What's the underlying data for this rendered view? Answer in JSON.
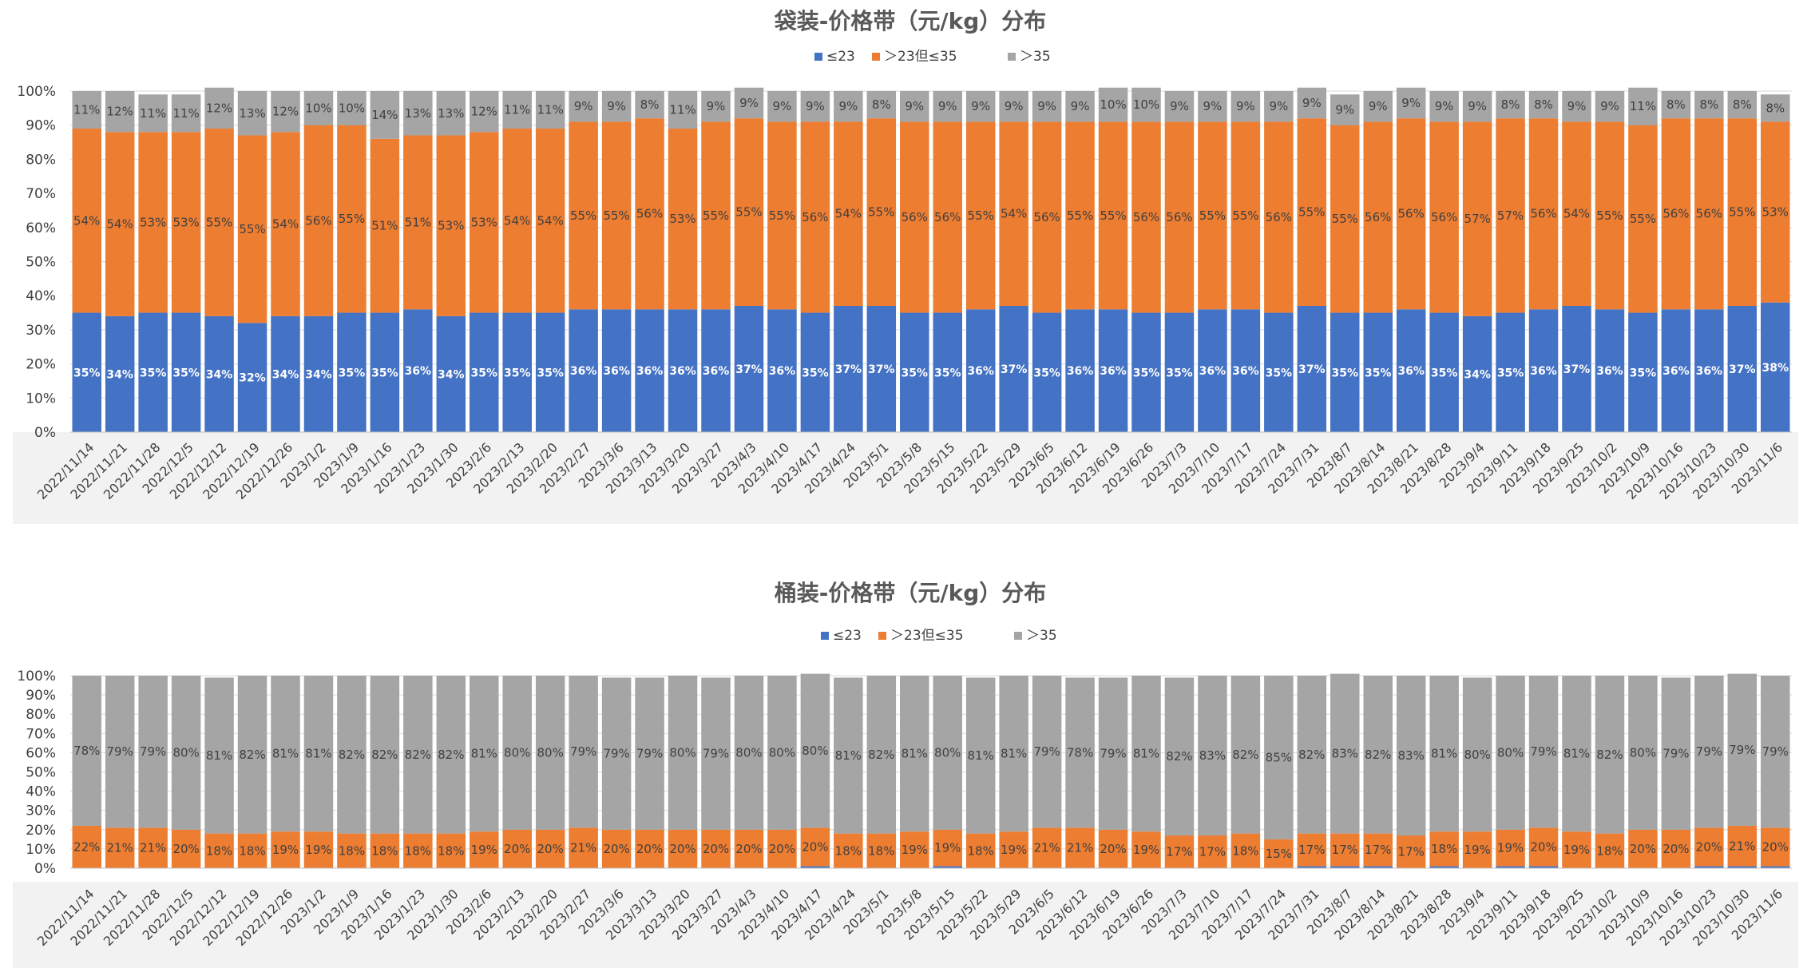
{
  "colors": {
    "low": "#4472C4",
    "mid": "#ED7D31",
    "high": "#A5A5A5"
  },
  "chart_data": [
    {
      "type": "bar",
      "stacked": "percent",
      "title": "袋装-价格带（元/kg）分布",
      "legend_position": "top",
      "ylim": [
        0,
        100
      ],
      "yticks": [
        "0%",
        "10%",
        "20%",
        "30%",
        "40%",
        "50%",
        "60%",
        "70%",
        "80%",
        "90%",
        "100%"
      ],
      "categories": [
        "2022/11/14",
        "2022/11/21",
        "2022/11/28",
        "2022/12/5",
        "2022/12/12",
        "2022/12/19",
        "2022/12/26",
        "2023/1/2",
        "2023/1/9",
        "2023/1/16",
        "2023/1/23",
        "2023/1/30",
        "2023/2/6",
        "2023/2/13",
        "2023/2/20",
        "2023/2/27",
        "2023/3/6",
        "2023/3/13",
        "2023/3/20",
        "2023/3/27",
        "2023/4/3",
        "2023/4/10",
        "2023/4/17",
        "2023/4/24",
        "2023/5/1",
        "2023/5/8",
        "2023/5/15",
        "2023/5/22",
        "2023/5/29",
        "2023/6/5",
        "2023/6/12",
        "2023/6/19",
        "2023/6/26",
        "2023/7/3",
        "2023/7/10",
        "2023/7/17",
        "2023/7/24",
        "2023/7/31",
        "2023/8/7",
        "2023/8/14",
        "2023/8/21",
        "2023/8/28",
        "2023/9/4",
        "2023/9/11",
        "2023/9/18",
        "2023/9/25",
        "2023/10/2",
        "2023/10/9",
        "2023/10/16",
        "2023/10/23",
        "2023/10/30",
        "2023/11/6"
      ],
      "series": [
        {
          "name": "≤23",
          "values": [
            35,
            34,
            35,
            35,
            34,
            32,
            34,
            34,
            35,
            35,
            36,
            34,
            35,
            35,
            35,
            36,
            36,
            36,
            36,
            36,
            37,
            36,
            35,
            37,
            37,
            35,
            35,
            36,
            37,
            35,
            36,
            36,
            35,
            35,
            36,
            36,
            35,
            37,
            35,
            35,
            36,
            35,
            34,
            35,
            36,
            37,
            36,
            35,
            36,
            36,
            37,
            38
          ],
          "show_labels": true
        },
        {
          "name": "＞23但≤35",
          "values": [
            54,
            54,
            53,
            53,
            55,
            55,
            54,
            56,
            55,
            51,
            51,
            53,
            53,
            54,
            54,
            55,
            55,
            56,
            53,
            55,
            55,
            55,
            56,
            54,
            55,
            56,
            56,
            55,
            54,
            56,
            55,
            55,
            56,
            56,
            55,
            55,
            56,
            55,
            55,
            56,
            56,
            56,
            57,
            57,
            56,
            54,
            55,
            55,
            56,
            56,
            55,
            53
          ],
          "show_labels": true
        },
        {
          "name": "＞35",
          "values": [
            11,
            12,
            11,
            11,
            12,
            13,
            12,
            10,
            10,
            14,
            13,
            13,
            12,
            11,
            11,
            9,
            9,
            8,
            11,
            9,
            9,
            9,
            9,
            9,
            8,
            9,
            9,
            9,
            9,
            9,
            9,
            10,
            10,
            9,
            9,
            9,
            9,
            9,
            9,
            9,
            9,
            9,
            9,
            8,
            8,
            9,
            9,
            11,
            8,
            8,
            8,
            8
          ],
          "show_labels": true
        }
      ]
    },
    {
      "type": "bar",
      "stacked": "percent",
      "title": "桶装-价格带（元/kg）分布",
      "legend_position": "top",
      "ylim": [
        0,
        100
      ],
      "yticks": [
        "0%",
        "10%",
        "20%",
        "30%",
        "40%",
        "50%",
        "60%",
        "70%",
        "80%",
        "90%",
        "100%"
      ],
      "categories": [
        "2022/11/14",
        "2022/11/21",
        "2022/11/28",
        "2022/12/5",
        "2022/12/12",
        "2022/12/19",
        "2022/12/26",
        "2023/1/2",
        "2023/1/9",
        "2023/1/16",
        "2023/1/23",
        "2023/1/30",
        "2023/2/6",
        "2023/2/13",
        "2023/2/20",
        "2023/2/27",
        "2023/3/6",
        "2023/3/13",
        "2023/3/20",
        "2023/3/27",
        "2023/4/3",
        "2023/4/10",
        "2023/4/17",
        "2023/4/24",
        "2023/5/1",
        "2023/5/8",
        "2023/5/15",
        "2023/5/22",
        "2023/5/29",
        "2023/6/5",
        "2023/6/12",
        "2023/6/19",
        "2023/6/26",
        "2023/7/3",
        "2023/7/10",
        "2023/7/17",
        "2023/7/24",
        "2023/7/31",
        "2023/8/7",
        "2023/8/14",
        "2023/8/21",
        "2023/8/28",
        "2023/9/4",
        "2023/9/11",
        "2023/9/18",
        "2023/9/25",
        "2023/10/2",
        "2023/10/9",
        "2023/10/16",
        "2023/10/23",
        "2023/10/30",
        "2023/11/6"
      ],
      "series": [
        {
          "name": "≤23",
          "values": [
            0,
            0,
            0,
            0,
            0,
            0,
            0,
            0,
            0,
            0,
            0,
            0,
            0,
            0,
            0,
            0,
            0,
            0,
            0,
            0,
            0,
            0,
            1,
            0,
            0,
            0,
            1,
            0,
            0,
            0,
            0,
            0,
            0,
            0,
            0,
            0,
            0,
            1,
            1,
            1,
            0,
            1,
            0,
            1,
            1,
            0,
            0,
            0,
            0,
            1,
            1,
            1
          ],
          "show_labels": false
        },
        {
          "name": "＞23但≤35",
          "values": [
            22,
            21,
            21,
            20,
            18,
            18,
            19,
            19,
            18,
            18,
            18,
            18,
            19,
            20,
            20,
            21,
            20,
            20,
            20,
            20,
            20,
            20,
            20,
            18,
            18,
            19,
            19,
            18,
            19,
            21,
            21,
            20,
            19,
            17,
            17,
            18,
            15,
            17,
            17,
            17,
            17,
            18,
            19,
            19,
            20,
            19,
            18,
            20,
            20,
            20,
            21,
            20
          ],
          "show_labels": true
        },
        {
          "name": "＞35",
          "values": [
            78,
            79,
            79,
            80,
            81,
            82,
            81,
            81,
            82,
            82,
            82,
            82,
            81,
            80,
            80,
            79,
            79,
            79,
            80,
            79,
            80,
            80,
            80,
            81,
            82,
            81,
            80,
            81,
            81,
            79,
            78,
            79,
            81,
            82,
            83,
            82,
            85,
            82,
            83,
            82,
            83,
            81,
            80,
            80,
            79,
            81,
            82,
            80,
            79,
            79,
            79,
            79
          ],
          "show_labels": true
        }
      ]
    }
  ]
}
